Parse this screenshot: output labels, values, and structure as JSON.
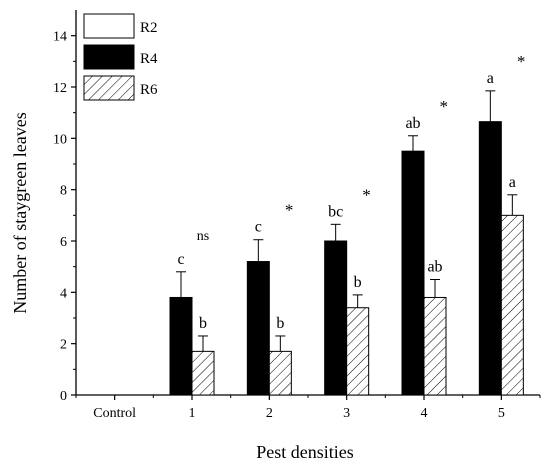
{
  "chart_data": {
    "type": "bar",
    "xlabel": "Pest densities",
    "ylabel": "Number of staygreen leaves",
    "ylim": [
      0,
      15
    ],
    "yticks": [
      0,
      2,
      4,
      6,
      8,
      10,
      12,
      14
    ],
    "categories": [
      "Control",
      "1",
      "2",
      "3",
      "4",
      "5"
    ],
    "series": [
      {
        "name": "R2",
        "fill": "white",
        "values": [
          0,
          0,
          0,
          0,
          0,
          0
        ],
        "errors": [
          0,
          0,
          0,
          0,
          0,
          0
        ],
        "letters": [
          "",
          "",
          "",
          "",
          "",
          ""
        ]
      },
      {
        "name": "R4",
        "fill": "black",
        "values": [
          0,
          3.8,
          5.2,
          6.0,
          9.5,
          10.65
        ],
        "errors": [
          0,
          1.0,
          0.85,
          0.65,
          0.6,
          1.2
        ],
        "letters": [
          "",
          "c",
          "c",
          "bc",
          "ab",
          "a"
        ]
      },
      {
        "name": "R6",
        "fill": "hatch",
        "values": [
          0,
          1.7,
          1.7,
          3.4,
          3.8,
          7.0
        ],
        "errors": [
          0,
          0.6,
          0.6,
          0.5,
          0.7,
          0.8
        ],
        "letters": [
          "",
          "b",
          "b",
          "b",
          "ab",
          "a"
        ]
      }
    ],
    "significance": [
      "",
      "ns",
      "*",
      "*",
      "*",
      "*"
    ],
    "legend_position": "top-left",
    "grid": false
  }
}
